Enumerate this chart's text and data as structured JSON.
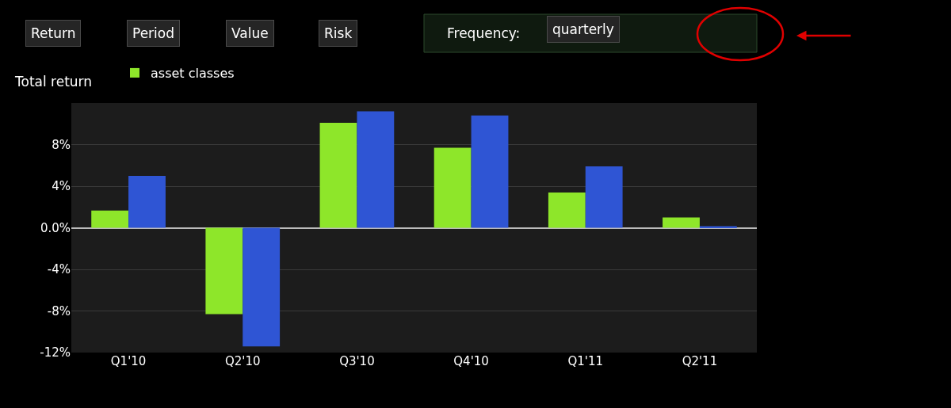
{
  "chart_data": {
    "type": "bar",
    "ylabel": "Total return",
    "annotations": [
      "Return",
      "Period",
      "Value",
      "Risk",
      "Frequency:",
      "quarterly"
    ],
    "categories": [
      "Q1'10",
      "Q2'10",
      "Q3'10",
      "Q4'10",
      "Q1'11",
      "Q2'11"
    ],
    "series": [
      {
        "name": "asset classes",
        "color": "#8ee62a",
        "values": [
          1.65,
          -8.3,
          10.1,
          7.7,
          3.4,
          1.0
        ]
      },
      {
        "color": "#2f55d4",
        "values": [
          5.0,
          -11.4,
          11.2,
          10.8,
          5.9,
          0.15
        ]
      }
    ],
    "ylim": [
      -12,
      12
    ],
    "yticks": [
      {
        "value": -12,
        "label": "-12%"
      },
      {
        "value": -8,
        "label": "-8%"
      },
      {
        "value": -4,
        "label": "-4%"
      },
      {
        "value": 0,
        "label": "0.0%"
      },
      {
        "value": 4,
        "label": "4%"
      },
      {
        "value": 8,
        "label": "8%"
      }
    ],
    "grid": "y",
    "legend": "top left"
  }
}
